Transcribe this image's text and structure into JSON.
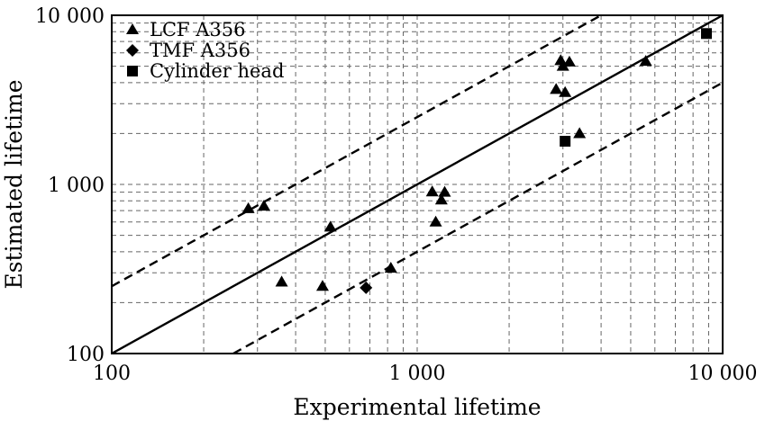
{
  "chart_data": {
    "type": "scatter",
    "title": "",
    "xlabel": "Experimental lifetime",
    "ylabel": "Estimated lifetime",
    "x_scale": "log",
    "y_scale": "log",
    "xlim": [
      100,
      10000
    ],
    "ylim": [
      100,
      10000
    ],
    "x_ticks": [
      {
        "value": 100,
        "label": "100"
      },
      {
        "value": 1000,
        "label": "1 000"
      },
      {
        "value": 10000,
        "label": "10 000"
      }
    ],
    "y_ticks": [
      {
        "value": 100,
        "label": "100"
      },
      {
        "value": 1000,
        "label": "1 000"
      },
      {
        "value": 10000,
        "label": "10 000"
      }
    ],
    "grid": true,
    "legend_position": "top-left",
    "reference_lines": [
      {
        "style": "solid",
        "factor": 1
      },
      {
        "style": "dashed",
        "factor": 2.5
      },
      {
        "style": "dashed",
        "factor": 0.4
      }
    ],
    "series": [
      {
        "name": "LCF A356",
        "marker": "triangle",
        "points": [
          {
            "x": 280,
            "y": 720
          },
          {
            "x": 315,
            "y": 745
          },
          {
            "x": 360,
            "y": 265
          },
          {
            "x": 490,
            "y": 250
          },
          {
            "x": 520,
            "y": 560
          },
          {
            "x": 820,
            "y": 320
          },
          {
            "x": 1120,
            "y": 905
          },
          {
            "x": 1150,
            "y": 600
          },
          {
            "x": 1200,
            "y": 810
          },
          {
            "x": 1230,
            "y": 900
          },
          {
            "x": 2850,
            "y": 3650
          },
          {
            "x": 2950,
            "y": 5400
          },
          {
            "x": 3000,
            "y": 5000
          },
          {
            "x": 3050,
            "y": 3500
          },
          {
            "x": 3150,
            "y": 5300
          },
          {
            "x": 3400,
            "y": 2000
          },
          {
            "x": 5600,
            "y": 5350
          }
        ]
      },
      {
        "name": "TMF A356",
        "marker": "diamond",
        "points": [
          {
            "x": 680,
            "y": 245
          }
        ]
      },
      {
        "name": "Cylinder head",
        "marker": "square",
        "points": [
          {
            "x": 3050,
            "y": 1800
          },
          {
            "x": 8850,
            "y": 7800
          }
        ]
      }
    ]
  }
}
